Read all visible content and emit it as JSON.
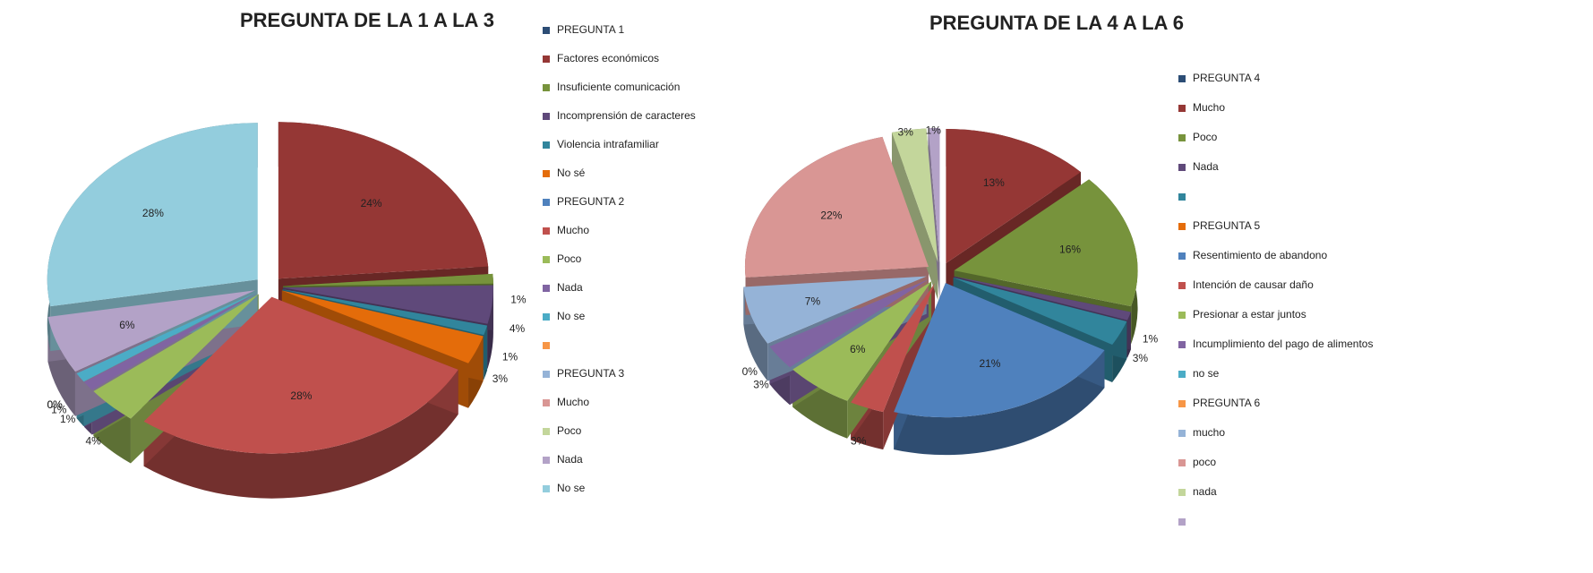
{
  "chart_data": [
    {
      "type": "pie3d",
      "title": "PREGUNTA DE LA 1 A LA 3",
      "categories": [
        "PREGUNTA 1",
        "Factores económicos",
        "Insuficiente comunicación",
        "Incomprensión de caracteres",
        "Violencia intrafamiliar",
        "No sé",
        "PREGUNTA 2",
        "Mucho",
        "Poco",
        "Nada",
        "No se",
        null,
        "PREGUNTA 3",
        "Mucho",
        "Poco",
        "Nada",
        "No se"
      ],
      "values": [
        0,
        24,
        1,
        4,
        1,
        3,
        0,
        28,
        4,
        1,
        1,
        0,
        0,
        0,
        0,
        6,
        28
      ],
      "value_labels": [
        null,
        "24%",
        "1%",
        "4%",
        "1%",
        "3%",
        null,
        "28%",
        "4%",
        "1%",
        "1%",
        "0%",
        null,
        null,
        "0%",
        "6%",
        "28%"
      ],
      "colors": [
        "#2c4d75",
        "#953735",
        "#77933c",
        "#5f497a",
        "#31859c",
        "#e46c0a",
        "#4f81bd",
        "#c0504d",
        "#9bbb59",
        "#8064a2",
        "#4bacc6",
        "#f79646",
        "#95b3d7",
        "#d99694",
        "#c3d69b",
        "#b3a2c7",
        "#93cddd"
      ],
      "legend": "right"
    },
    {
      "type": "pie3d",
      "title": "PREGUNTA  DE  LA 4 A LA  6",
      "categories": [
        "PREGUNTA 4",
        "Mucho",
        "Poco",
        "Nada",
        null,
        "PREGUNTA 5",
        "Resentimiento de abandono",
        "Intención de causar daño",
        "Presionar  a estar juntos",
        "Incumplimiento del pago de alimentos",
        "no se",
        "PREGUNTA 6",
        "mucho",
        "poco",
        "nada",
        null
      ],
      "values": [
        0,
        13,
        16,
        1,
        3,
        0,
        21,
        3,
        6,
        3,
        0,
        0,
        7,
        22,
        3,
        1
      ],
      "value_labels": [
        null,
        "13%",
        "16%",
        "1%",
        "3%",
        null,
        "21%",
        "3%",
        "6%",
        "3%",
        "0%",
        null,
        "7%",
        "22%",
        "3%",
        "1%"
      ],
      "colors": [
        "#2c4d75",
        "#953735",
        "#77933c",
        "#5f497a",
        "#31859c",
        "#e46c0a",
        "#4f81bd",
        "#c0504d",
        "#9bbb59",
        "#8064a2",
        "#4bacc6",
        "#f79646",
        "#95b3d7",
        "#d99694",
        "#c3d69b",
        "#b3a2c7"
      ],
      "legend": "right"
    }
  ]
}
